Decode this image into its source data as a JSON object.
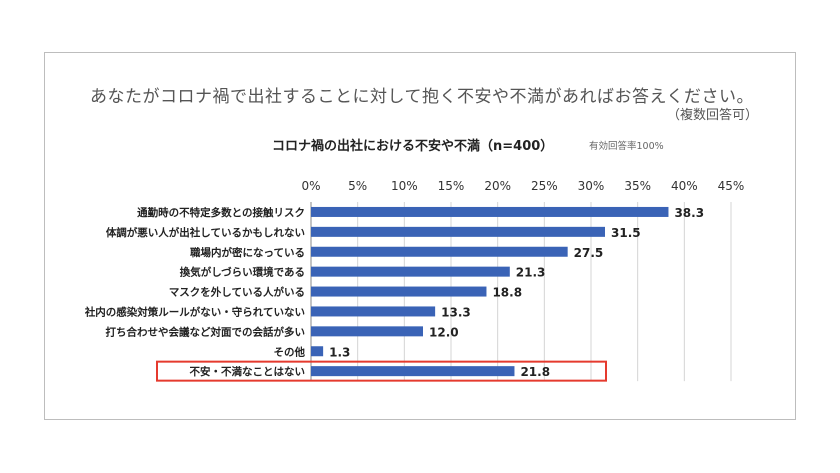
{
  "question": "あなたがコロナ禍で出社することに対して抱く不安や不満があればお答えください。",
  "note": "（複数回答可）",
  "chart_title": "コロナ禍の出社における不安や不満（n=400）",
  "response_rate": "有効回答率100%",
  "colors": {
    "bar": "#3a63b6",
    "highlight": "#e53a2e",
    "grid": "#d4d4d4"
  },
  "chart_data": {
    "type": "bar",
    "orientation": "horizontal",
    "title": "コロナ禍の出社における不安や不満（n=400）",
    "xlim": [
      0,
      45
    ],
    "x_ticks": [
      "0%",
      "5%",
      "10%",
      "15%",
      "20%",
      "25%",
      "30%",
      "35%",
      "40%",
      "45%"
    ],
    "grid": true,
    "categories": [
      "通勤時の不特定多数との接触リスク",
      "体調が悪い人が出社しているかもしれない",
      "職場内が密になっている",
      "換気がしづらい環境である",
      "マスクを外している人がいる",
      "社内の感染対策ルールがない・守られていない",
      "打ち合わせや会議など対面での会話が多い",
      "その他",
      "不安・不満なことはない"
    ],
    "values": [
      38.3,
      31.5,
      27.5,
      21.3,
      18.8,
      13.3,
      12.0,
      1.3,
      21.8
    ],
    "value_labels": [
      "38.3",
      "31.5",
      "27.5",
      "21.3",
      "18.8",
      "13.3",
      "12.0",
      "1.3",
      "21.8"
    ],
    "highlighted_category": "不安・不満なことはない"
  }
}
